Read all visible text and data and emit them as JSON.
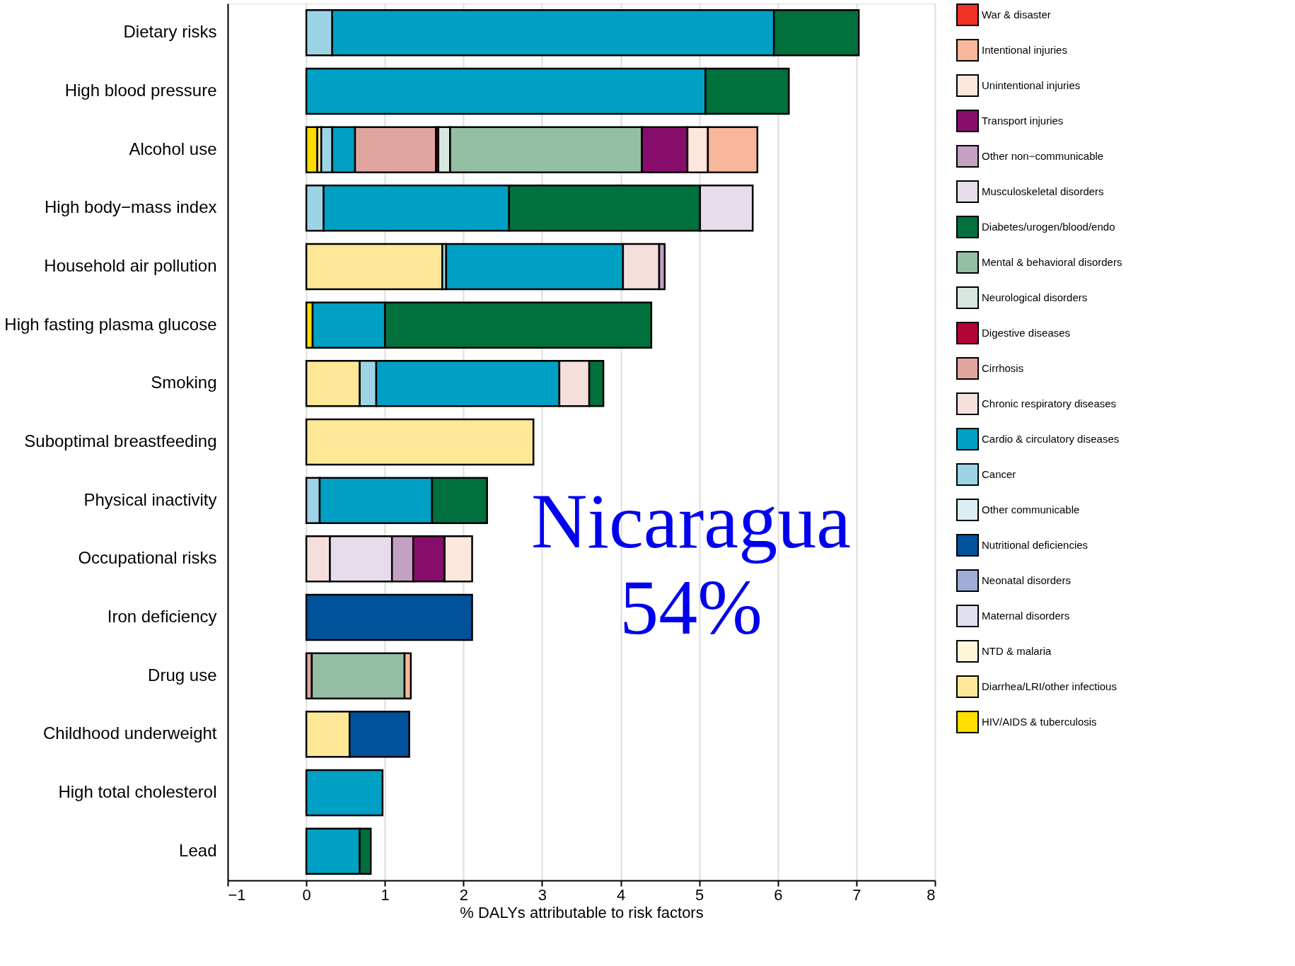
{
  "chart_data": {
    "type": "bar",
    "orientation": "horizontal",
    "stacked": true,
    "categories": [
      "Dietary risks",
      "High blood pressure",
      "Alcohol use",
      "High body−mass index",
      "Household air pollution",
      "High fasting plasma glucose",
      "Smoking",
      "Suboptimal breastfeeding",
      "Physical inactivity",
      "Occupational risks",
      "Iron deficiency",
      "Drug use",
      "Childhood underweight",
      "High total cholesterol",
      "Lead"
    ],
    "xlabel": "% DALYs attributable to risk factors",
    "xlim": [
      -1,
      8
    ],
    "xticks": [
      -1,
      0,
      1,
      2,
      3,
      4,
      5,
      6,
      7,
      8
    ],
    "grid": "x",
    "legend": "right",
    "annotations": [
      "Nicaragua",
      "54%"
    ],
    "series": [
      {
        "name": "HIV/AIDS & tuberculosis",
        "color": "#ffdd00",
        "values": [
          null,
          null,
          0.14,
          null,
          null,
          0.08,
          null,
          null,
          null,
          null,
          null,
          null,
          null,
          null,
          null
        ]
      },
      {
        "name": "Diarrhea/LRI/other infectious",
        "color": "#fee897",
        "values": [
          null,
          null,
          0.05,
          null,
          1.73,
          null,
          0.68,
          2.89,
          null,
          null,
          null,
          null,
          0.55,
          null,
          null
        ]
      },
      {
        "name": "NTD & malaria",
        "color": "#fff6d8",
        "values": [
          null,
          null,
          null,
          null,
          null,
          null,
          null,
          null,
          null,
          null,
          null,
          null,
          null,
          null,
          null
        ]
      },
      {
        "name": "Maternal disorders",
        "color": "#dfe1f0",
        "values": [
          null,
          null,
          null,
          null,
          null,
          null,
          null,
          null,
          null,
          null,
          null,
          null,
          null,
          null,
          null
        ]
      },
      {
        "name": "Neonatal disorders",
        "color": "#9eacd6",
        "values": [
          null,
          null,
          null,
          null,
          null,
          null,
          null,
          null,
          null,
          null,
          null,
          null,
          null,
          null,
          null
        ]
      },
      {
        "name": "Nutritional deficiencies",
        "color": "#00529b",
        "values": [
          null,
          null,
          null,
          null,
          null,
          null,
          null,
          null,
          null,
          null,
          2.11,
          null,
          0.76,
          null,
          null
        ]
      },
      {
        "name": "Other communicable",
        "color": "#daeef3",
        "values": [
          null,
          null,
          null,
          null,
          null,
          null,
          null,
          null,
          null,
          null,
          null,
          null,
          null,
          null,
          null
        ]
      },
      {
        "name": "Cancer",
        "color": "#9cd4e6",
        "values": [
          0.33,
          null,
          0.14,
          0.22,
          0.05,
          null,
          0.21,
          null,
          0.17,
          null,
          null,
          null,
          null,
          null,
          null
        ]
      },
      {
        "name": "Cardio & circulatory diseases",
        "color": "#00a0c4",
        "values": [
          5.62,
          5.08,
          0.29,
          2.36,
          2.25,
          0.92,
          2.33,
          null,
          1.43,
          null,
          null,
          null,
          null,
          0.97,
          0.68
        ]
      },
      {
        "name": "Chronic respiratory diseases",
        "color": "#f4dfdb",
        "values": [
          null,
          null,
          null,
          null,
          0.46,
          null,
          0.38,
          null,
          null,
          0.3,
          null,
          null,
          null,
          null,
          null
        ]
      },
      {
        "name": "Cirrhosis",
        "color": "#e0a59f",
        "values": [
          null,
          null,
          1.03,
          null,
          null,
          null,
          null,
          null,
          null,
          null,
          null,
          0.07,
          null,
          null,
          null
        ]
      },
      {
        "name": "Digestive diseases",
        "color": "#b10535",
        "values": [
          null,
          null,
          0.03,
          null,
          null,
          null,
          null,
          null,
          null,
          null,
          null,
          null,
          null,
          null,
          null
        ]
      },
      {
        "name": "Neurological disorders",
        "color": "#d7e7e0",
        "values": [
          null,
          null,
          0.15,
          null,
          null,
          null,
          null,
          null,
          null,
          null,
          null,
          null,
          null,
          null,
          null
        ]
      },
      {
        "name": "Mental & behavioral disorders",
        "color": "#94bfa5",
        "values": [
          null,
          null,
          2.44,
          null,
          null,
          null,
          null,
          null,
          null,
          null,
          null,
          1.18,
          null,
          null,
          null
        ]
      },
      {
        "name": "Diabetes/urogen/blood/endo",
        "color": "#00703c",
        "values": [
          1.08,
          1.06,
          null,
          2.43,
          null,
          3.39,
          0.18,
          null,
          0.7,
          null,
          null,
          null,
          null,
          null,
          0.14
        ]
      },
      {
        "name": "Musculoskeletal disorders",
        "color": "#e7dcea",
        "values": [
          null,
          null,
          null,
          0.67,
          null,
          null,
          null,
          null,
          null,
          0.79,
          null,
          null,
          null,
          null,
          null
        ]
      },
      {
        "name": "Other non−communicable",
        "color": "#c4a0c2",
        "values": [
          null,
          null,
          null,
          null,
          0.07,
          null,
          null,
          null,
          null,
          0.27,
          null,
          null,
          null,
          null,
          null
        ]
      },
      {
        "name": "Transport injuries",
        "color": "#870d6d",
        "values": [
          null,
          null,
          0.58,
          null,
          null,
          null,
          null,
          null,
          null,
          0.4,
          null,
          null,
          null,
          null,
          null
        ]
      },
      {
        "name": "Unintentional injuries",
        "color": "#fde6db",
        "values": [
          null,
          null,
          0.26,
          null,
          null,
          null,
          null,
          null,
          null,
          0.35,
          null,
          null,
          null,
          null,
          null
        ]
      },
      {
        "name": "Intentional injuries",
        "color": "#f8b79a",
        "values": [
          null,
          null,
          0.63,
          null,
          null,
          null,
          null,
          null,
          null,
          null,
          null,
          0.08,
          null,
          null,
          null
        ]
      },
      {
        "name": "War & disaster",
        "color": "#ee3224",
        "values": [
          null,
          null,
          null,
          null,
          null,
          null,
          null,
          null,
          null,
          null,
          null,
          null,
          null,
          null,
          null
        ]
      }
    ]
  }
}
